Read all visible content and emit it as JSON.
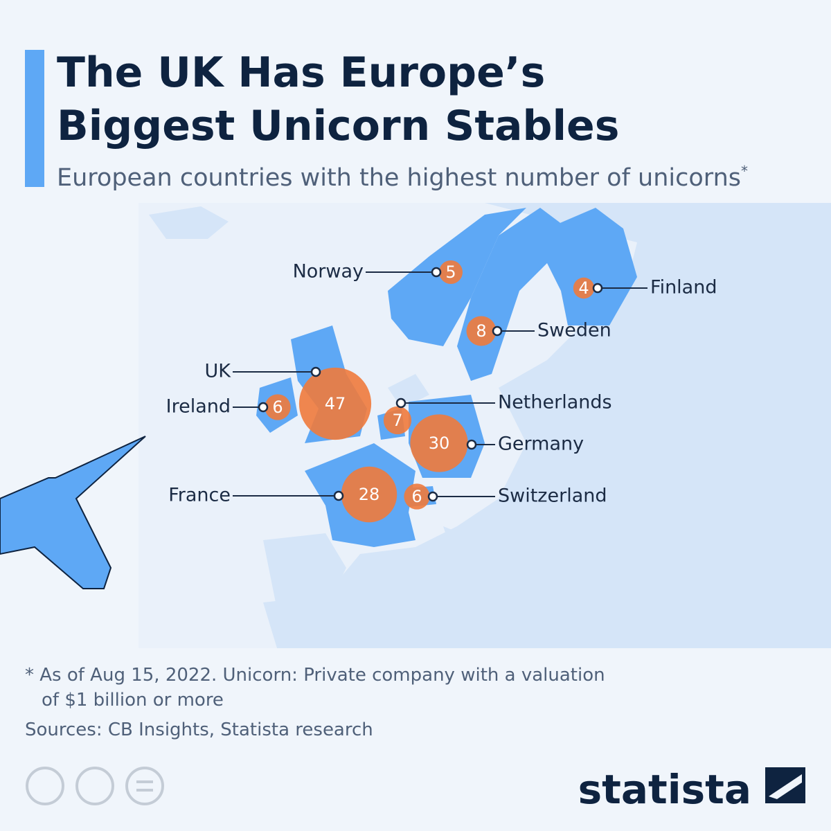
{
  "title": [
    "The UK Has Europe’s",
    "Biggest Unicorn Stables"
  ],
  "subtitle": "European countries with the highest number of unicorns",
  "subtitle_mark": "*",
  "countries": [
    {
      "name": "Norway",
      "value": 5
    },
    {
      "name": "Finland",
      "value": 4
    },
    {
      "name": "Sweden",
      "value": 8
    },
    {
      "name": "UK",
      "value": 47
    },
    {
      "name": "Ireland",
      "value": 6
    },
    {
      "name": "Netherlands",
      "value": 7
    },
    {
      "name": "Germany",
      "value": 30
    },
    {
      "name": "France",
      "value": 28
    },
    {
      "name": "Switzerland",
      "value": 6
    }
  ],
  "footnote": [
    "* As of Aug 15, 2022. Unicorn: Private company with a valuation",
    "of $1 billion or more"
  ],
  "source": "Sources: CB Insights, Statista research",
  "brand": "statista"
}
